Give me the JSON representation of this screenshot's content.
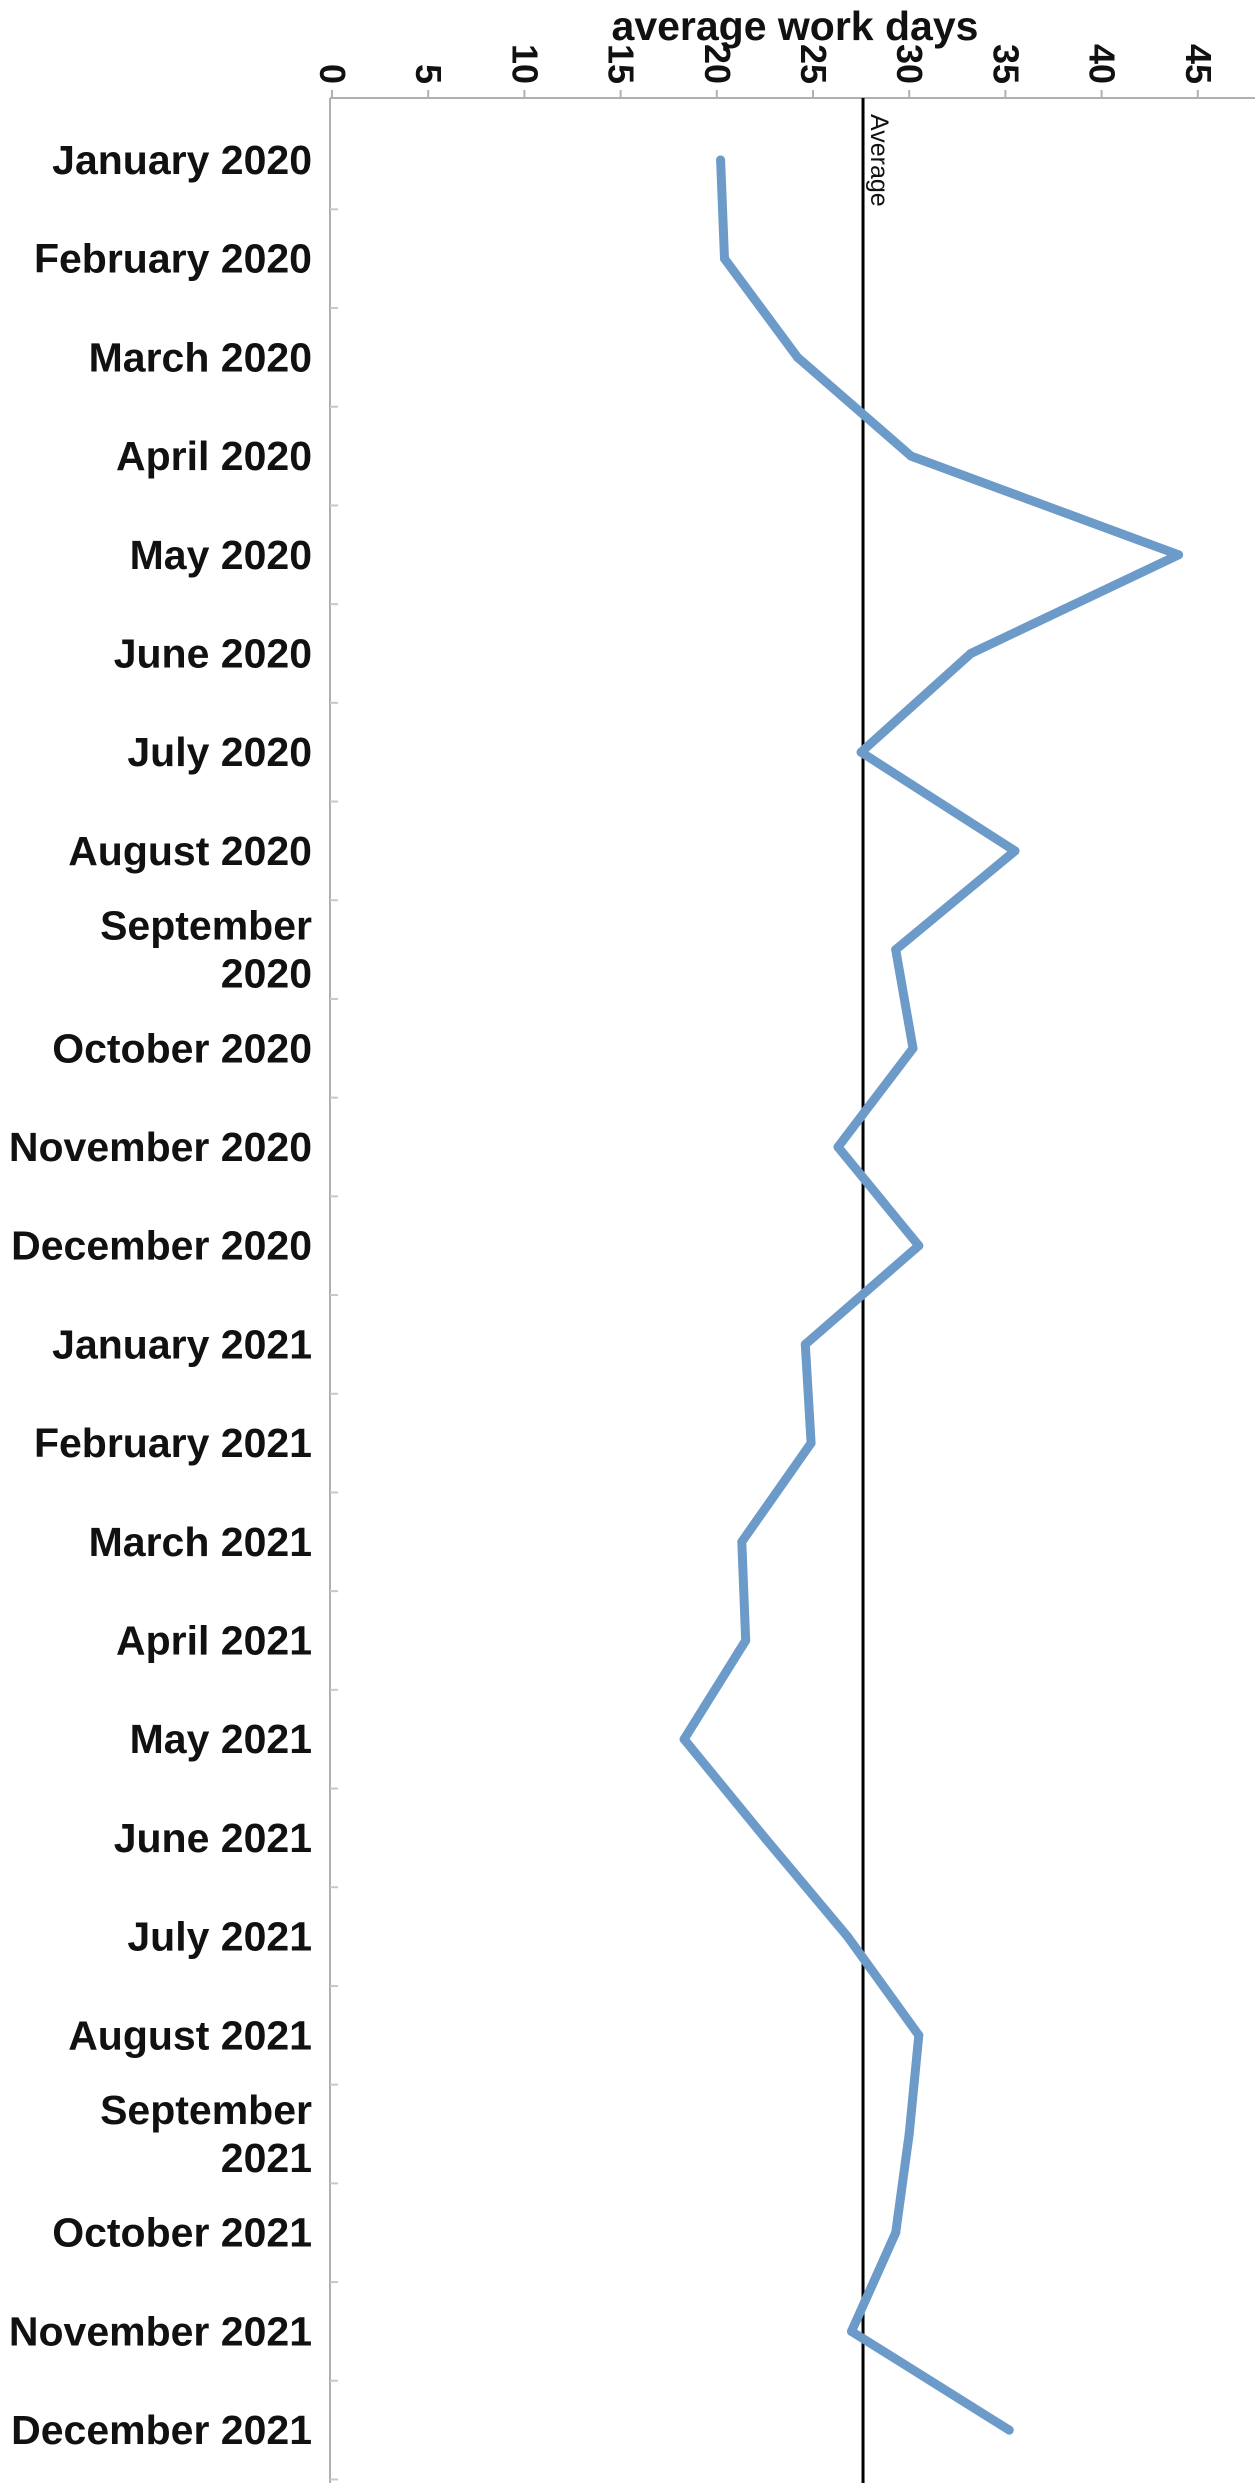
{
  "chart_data": {
    "type": "line",
    "orientation": "horizontal",
    "title": "",
    "xlabel": "average work days",
    "ylabel": "",
    "xlim": [
      0,
      45
    ],
    "x_ticks": [
      0,
      5,
      10,
      15,
      20,
      25,
      30,
      35,
      40,
      45
    ],
    "categories": [
      "January 2020",
      "February 2020",
      "March 2020",
      "April 2020",
      "May 2020",
      "June 2020",
      "July 2020",
      "August 2020",
      "September 2020",
      "October 2020",
      "November 2020",
      "December 2020",
      "January 2021",
      "February 2021",
      "March 2021",
      "April 2021",
      "May 2021",
      "June 2021",
      "July 2021",
      "August 2021",
      "September 2021",
      "October 2021",
      "November 2021",
      "December 2021"
    ],
    "category_labels": [
      [
        "January 2020"
      ],
      [
        "February 2020"
      ],
      [
        "March 2020"
      ],
      [
        "April 2020"
      ],
      [
        "May 2020"
      ],
      [
        "June 2020"
      ],
      [
        "July 2020"
      ],
      [
        "August 2020"
      ],
      [
        "September",
        "2020"
      ],
      [
        "October 2020"
      ],
      [
        "November 2020"
      ],
      [
        "December 2020"
      ],
      [
        "January 2021"
      ],
      [
        "February 2021"
      ],
      [
        "March 2021"
      ],
      [
        "April 2021"
      ],
      [
        "May 2021"
      ],
      [
        "June 2021"
      ],
      [
        "July 2021"
      ],
      [
        "August 2021"
      ],
      [
        "September",
        "2021"
      ],
      [
        "October 2021"
      ],
      [
        "November 2021"
      ],
      [
        "December 2021"
      ]
    ],
    "series": [
      {
        "values": [
          20.2,
          20.4,
          24.2,
          30.1,
          44.0,
          33.2,
          27.5,
          35.5,
          29.3,
          30.2,
          26.3,
          30.5,
          24.6,
          24.9,
          21.3,
          21.5,
          18.3,
          22.5,
          26.8,
          30.5,
          30.0,
          29.3,
          27.0,
          35.2
        ],
        "color": "#6c9bc9"
      }
    ],
    "reference_lines": [
      {
        "label": "Average",
        "value": 27.6,
        "color": "#000000"
      }
    ],
    "grid": false,
    "legend": "none"
  }
}
